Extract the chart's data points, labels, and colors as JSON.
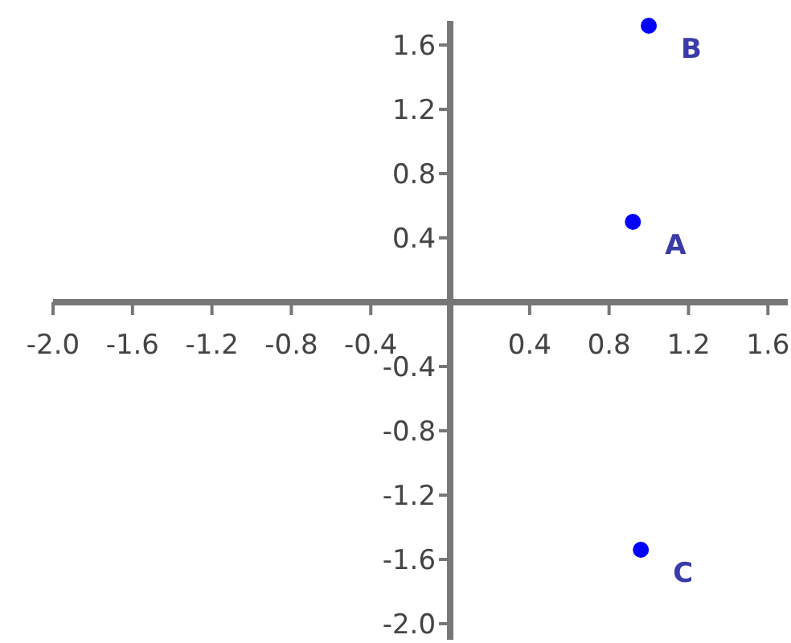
{
  "chart_data": {
    "type": "scatter",
    "x": [
      0.92,
      1.0,
      0.96
    ],
    "values": [
      0.5,
      1.72,
      -1.54
    ],
    "color": "#0000ff",
    "marker": "circle",
    "annotations": [
      {
        "text": "A",
        "x": 0.92,
        "y": 0.5
      },
      {
        "text": "B",
        "x": 1.0,
        "y": 1.72
      },
      {
        "text": "C",
        "x": 0.96,
        "y": -1.54
      }
    ],
    "xlim": [
      -2.0,
      1.7
    ],
    "ylim": [
      -2.1,
      1.75
    ],
    "xticks": [
      {
        "value": -2,
        "label": "-2.0"
      },
      -1.6,
      -1.2,
      -0.8,
      -0.4,
      0.4,
      0.8,
      1.2,
      1.6
    ],
    "yticks": [
      1.6,
      1.2,
      0.8,
      0.4,
      -0.4,
      -0.8,
      -1.2,
      -1.6,
      {
        "value": -2,
        "label": "-2.0"
      }
    ],
    "grid": false
  }
}
